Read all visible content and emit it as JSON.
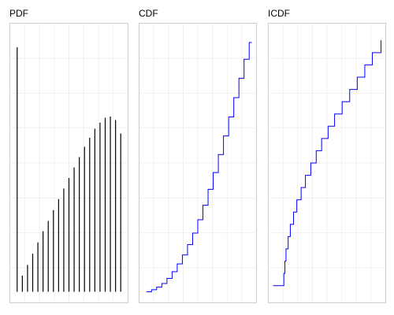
{
  "chart_data": [
    {
      "type": "bar",
      "title": "PDF",
      "xlabel": "",
      "ylabel": "",
      "grid": true,
      "color": "#000000",
      "xlim": [
        -0.5,
        20.5
      ],
      "ylim": [
        0,
        0.1
      ],
      "x": [
        0,
        1,
        2,
        3,
        4,
        5,
        6,
        7,
        8,
        9,
        10,
        11,
        12,
        13,
        14,
        15,
        16,
        17,
        18,
        19,
        20
      ],
      "values": [
        0.0949,
        0.0063,
        0.0104,
        0.0148,
        0.0192,
        0.0235,
        0.0275,
        0.0317,
        0.036,
        0.0401,
        0.0442,
        0.0483,
        0.0523,
        0.0563,
        0.0598,
        0.0633,
        0.0657,
        0.0676,
        0.0681,
        0.0667,
        0.0615
      ]
    },
    {
      "type": "line",
      "step": true,
      "title": "CDF",
      "xlabel": "",
      "ylabel": "",
      "grid": true,
      "color": "#0000ff",
      "xlim": [
        -0.5,
        20.5
      ],
      "ylim": [
        0,
        1
      ],
      "x": [
        0,
        1,
        2,
        3,
        4,
        5,
        6,
        7,
        8,
        9,
        10,
        11,
        12,
        13,
        14,
        15,
        16,
        17,
        18,
        19,
        20
      ],
      "values": [
        0.0,
        0.008,
        0.018,
        0.032,
        0.052,
        0.078,
        0.108,
        0.143,
        0.183,
        0.228,
        0.28,
        0.336,
        0.398,
        0.463,
        0.533,
        0.605,
        0.679,
        0.754,
        0.829,
        0.903,
        0.968
      ]
    },
    {
      "type": "line",
      "step": true,
      "title": "ICDF",
      "xlabel": "",
      "ylabel": "",
      "grid": true,
      "color": "#0000ff",
      "xlim": [
        0,
        1
      ],
      "ylim": [
        -0.5,
        20.5
      ],
      "x": [
        0.0,
        0.09,
        0.1,
        0.11,
        0.12,
        0.14,
        0.16,
        0.19,
        0.22,
        0.26,
        0.3,
        0.35,
        0.4,
        0.45,
        0.51,
        0.57,
        0.64,
        0.71,
        0.78,
        0.85,
        0.92,
        1.0
      ],
      "values": [
        0,
        0,
        1,
        2,
        3,
        4,
        5,
        6,
        7,
        8,
        9,
        10,
        11,
        12,
        13,
        14,
        15,
        16,
        17,
        18,
        19,
        20
      ]
    }
  ]
}
